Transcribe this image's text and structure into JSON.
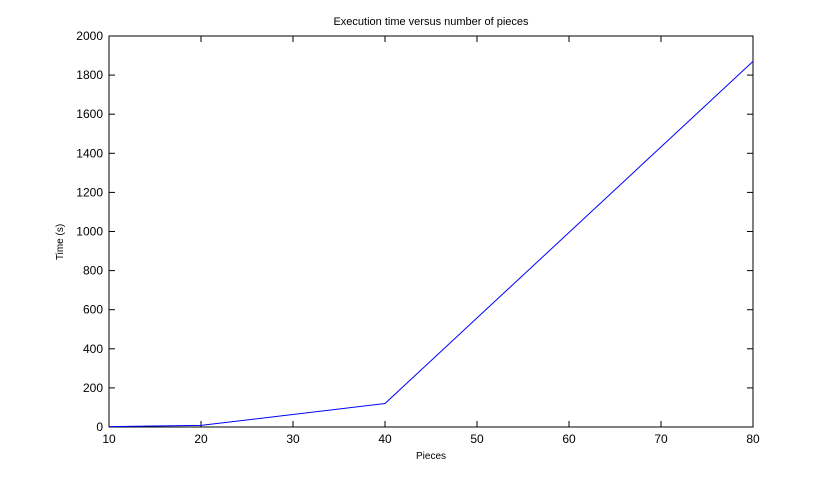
{
  "chart_data": {
    "type": "line",
    "title": "Execution time versus number of pieces",
    "xlabel": "Pieces",
    "ylabel": "Time (s)",
    "xlim": [
      10,
      80
    ],
    "ylim": [
      0,
      2000
    ],
    "xticks": [
      10,
      20,
      30,
      40,
      50,
      60,
      70,
      80
    ],
    "yticks": [
      0,
      200,
      400,
      600,
      800,
      1000,
      1200,
      1400,
      1600,
      1800,
      2000
    ],
    "grid": false,
    "series": [
      {
        "color": "#0000ff",
        "x": [
          10,
          20,
          40,
          80
        ],
        "y": [
          2,
          8,
          120,
          1870
        ]
      }
    ]
  }
}
